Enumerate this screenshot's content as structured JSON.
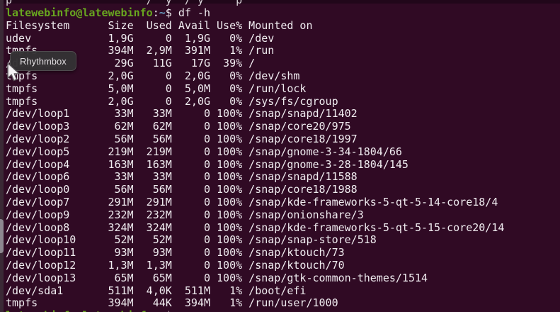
{
  "terminal": {
    "prompt": {
      "user_host": "latewebinfo@latewebinfo",
      "separator": ":",
      "path": "~",
      "symbol": "$",
      "command": "df -h"
    },
    "header": {
      "filesystem": "Filesystem",
      "size": "Size",
      "used": "Used",
      "avail": "Avail",
      "use": "Use%",
      "mounted": "Mounted on"
    },
    "rows": [
      {
        "fs": "udev",
        "size": "1,9G",
        "used": "0",
        "avail": "1,9G",
        "use": "0%",
        "mount": "/dev"
      },
      {
        "fs": "tmpfs",
        "size": "394M",
        "used": "2,9M",
        "avail": "391M",
        "use": "1%",
        "mount": "/run"
      },
      {
        "fs": "/dev/sda5",
        "size": "29G",
        "used": "11G",
        "avail": "17G",
        "use": "39%",
        "mount": "/"
      },
      {
        "fs": "tmpfs",
        "size": "2,0G",
        "used": "0",
        "avail": "2,0G",
        "use": "0%",
        "mount": "/dev/shm"
      },
      {
        "fs": "tmpfs",
        "size": "5,0M",
        "used": "0",
        "avail": "5,0M",
        "use": "0%",
        "mount": "/run/lock"
      },
      {
        "fs": "tmpfs",
        "size": "2,0G",
        "used": "0",
        "avail": "2,0G",
        "use": "0%",
        "mount": "/sys/fs/cgroup"
      },
      {
        "fs": "/dev/loop1",
        "size": "33M",
        "used": "33M",
        "avail": "0",
        "use": "100%",
        "mount": "/snap/snapd/11402"
      },
      {
        "fs": "/dev/loop3",
        "size": "62M",
        "used": "62M",
        "avail": "0",
        "use": "100%",
        "mount": "/snap/core20/975"
      },
      {
        "fs": "/dev/loop2",
        "size": "56M",
        "used": "56M",
        "avail": "0",
        "use": "100%",
        "mount": "/snap/core18/1997"
      },
      {
        "fs": "/dev/loop5",
        "size": "219M",
        "used": "219M",
        "avail": "0",
        "use": "100%",
        "mount": "/snap/gnome-3-34-1804/66"
      },
      {
        "fs": "/dev/loop4",
        "size": "163M",
        "used": "163M",
        "avail": "0",
        "use": "100%",
        "mount": "/snap/gnome-3-28-1804/145"
      },
      {
        "fs": "/dev/loop6",
        "size": "33M",
        "used": "33M",
        "avail": "0",
        "use": "100%",
        "mount": "/snap/snapd/11588"
      },
      {
        "fs": "/dev/loop0",
        "size": "56M",
        "used": "56M",
        "avail": "0",
        "use": "100%",
        "mount": "/snap/core18/1988"
      },
      {
        "fs": "/dev/loop7",
        "size": "291M",
        "used": "291M",
        "avail": "0",
        "use": "100%",
        "mount": "/snap/kde-frameworks-5-qt-5-14-core18/4"
      },
      {
        "fs": "/dev/loop9",
        "size": "232M",
        "used": "232M",
        "avail": "0",
        "use": "100%",
        "mount": "/snap/onionshare/3"
      },
      {
        "fs": "/dev/loop8",
        "size": "324M",
        "used": "324M",
        "avail": "0",
        "use": "100%",
        "mount": "/snap/kde-frameworks-5-qt-5-15-core20/14"
      },
      {
        "fs": "/dev/loop10",
        "size": "52M",
        "used": "52M",
        "avail": "0",
        "use": "100%",
        "mount": "/snap/snap-store/518"
      },
      {
        "fs": "/dev/loop11",
        "size": "93M",
        "used": "93M",
        "avail": "0",
        "use": "100%",
        "mount": "/snap/ktouch/73"
      },
      {
        "fs": "/dev/loop12",
        "size": "1,3M",
        "used": "1,3M",
        "avail": "0",
        "use": "100%",
        "mount": "/snap/ktouch/70"
      },
      {
        "fs": "/dev/loop13",
        "size": "65M",
        "used": "65M",
        "avail": "0",
        "use": "100%",
        "mount": "/snap/gtk-common-themes/1514"
      },
      {
        "fs": "/dev/sda1",
        "size": "511M",
        "used": "4,0K",
        "avail": "511M",
        "use": "1%",
        "mount": "/boot/efi"
      },
      {
        "fs": "tmpfs",
        "size": "394M",
        "used": "44K",
        "avail": "394M",
        "use": "1%",
        "mount": "/run/user/1000"
      }
    ],
    "top_fragment": "p                     /  y  / y     p",
    "colors": {
      "background": "#300a24",
      "text": "#f0ecf0",
      "prompt_green": "#68a61f",
      "path_blue": "#689fc4",
      "tooltip_bg": "#343234",
      "dock_pill": "#8d8890"
    }
  },
  "tooltip": {
    "label": "Rhythmbox"
  }
}
